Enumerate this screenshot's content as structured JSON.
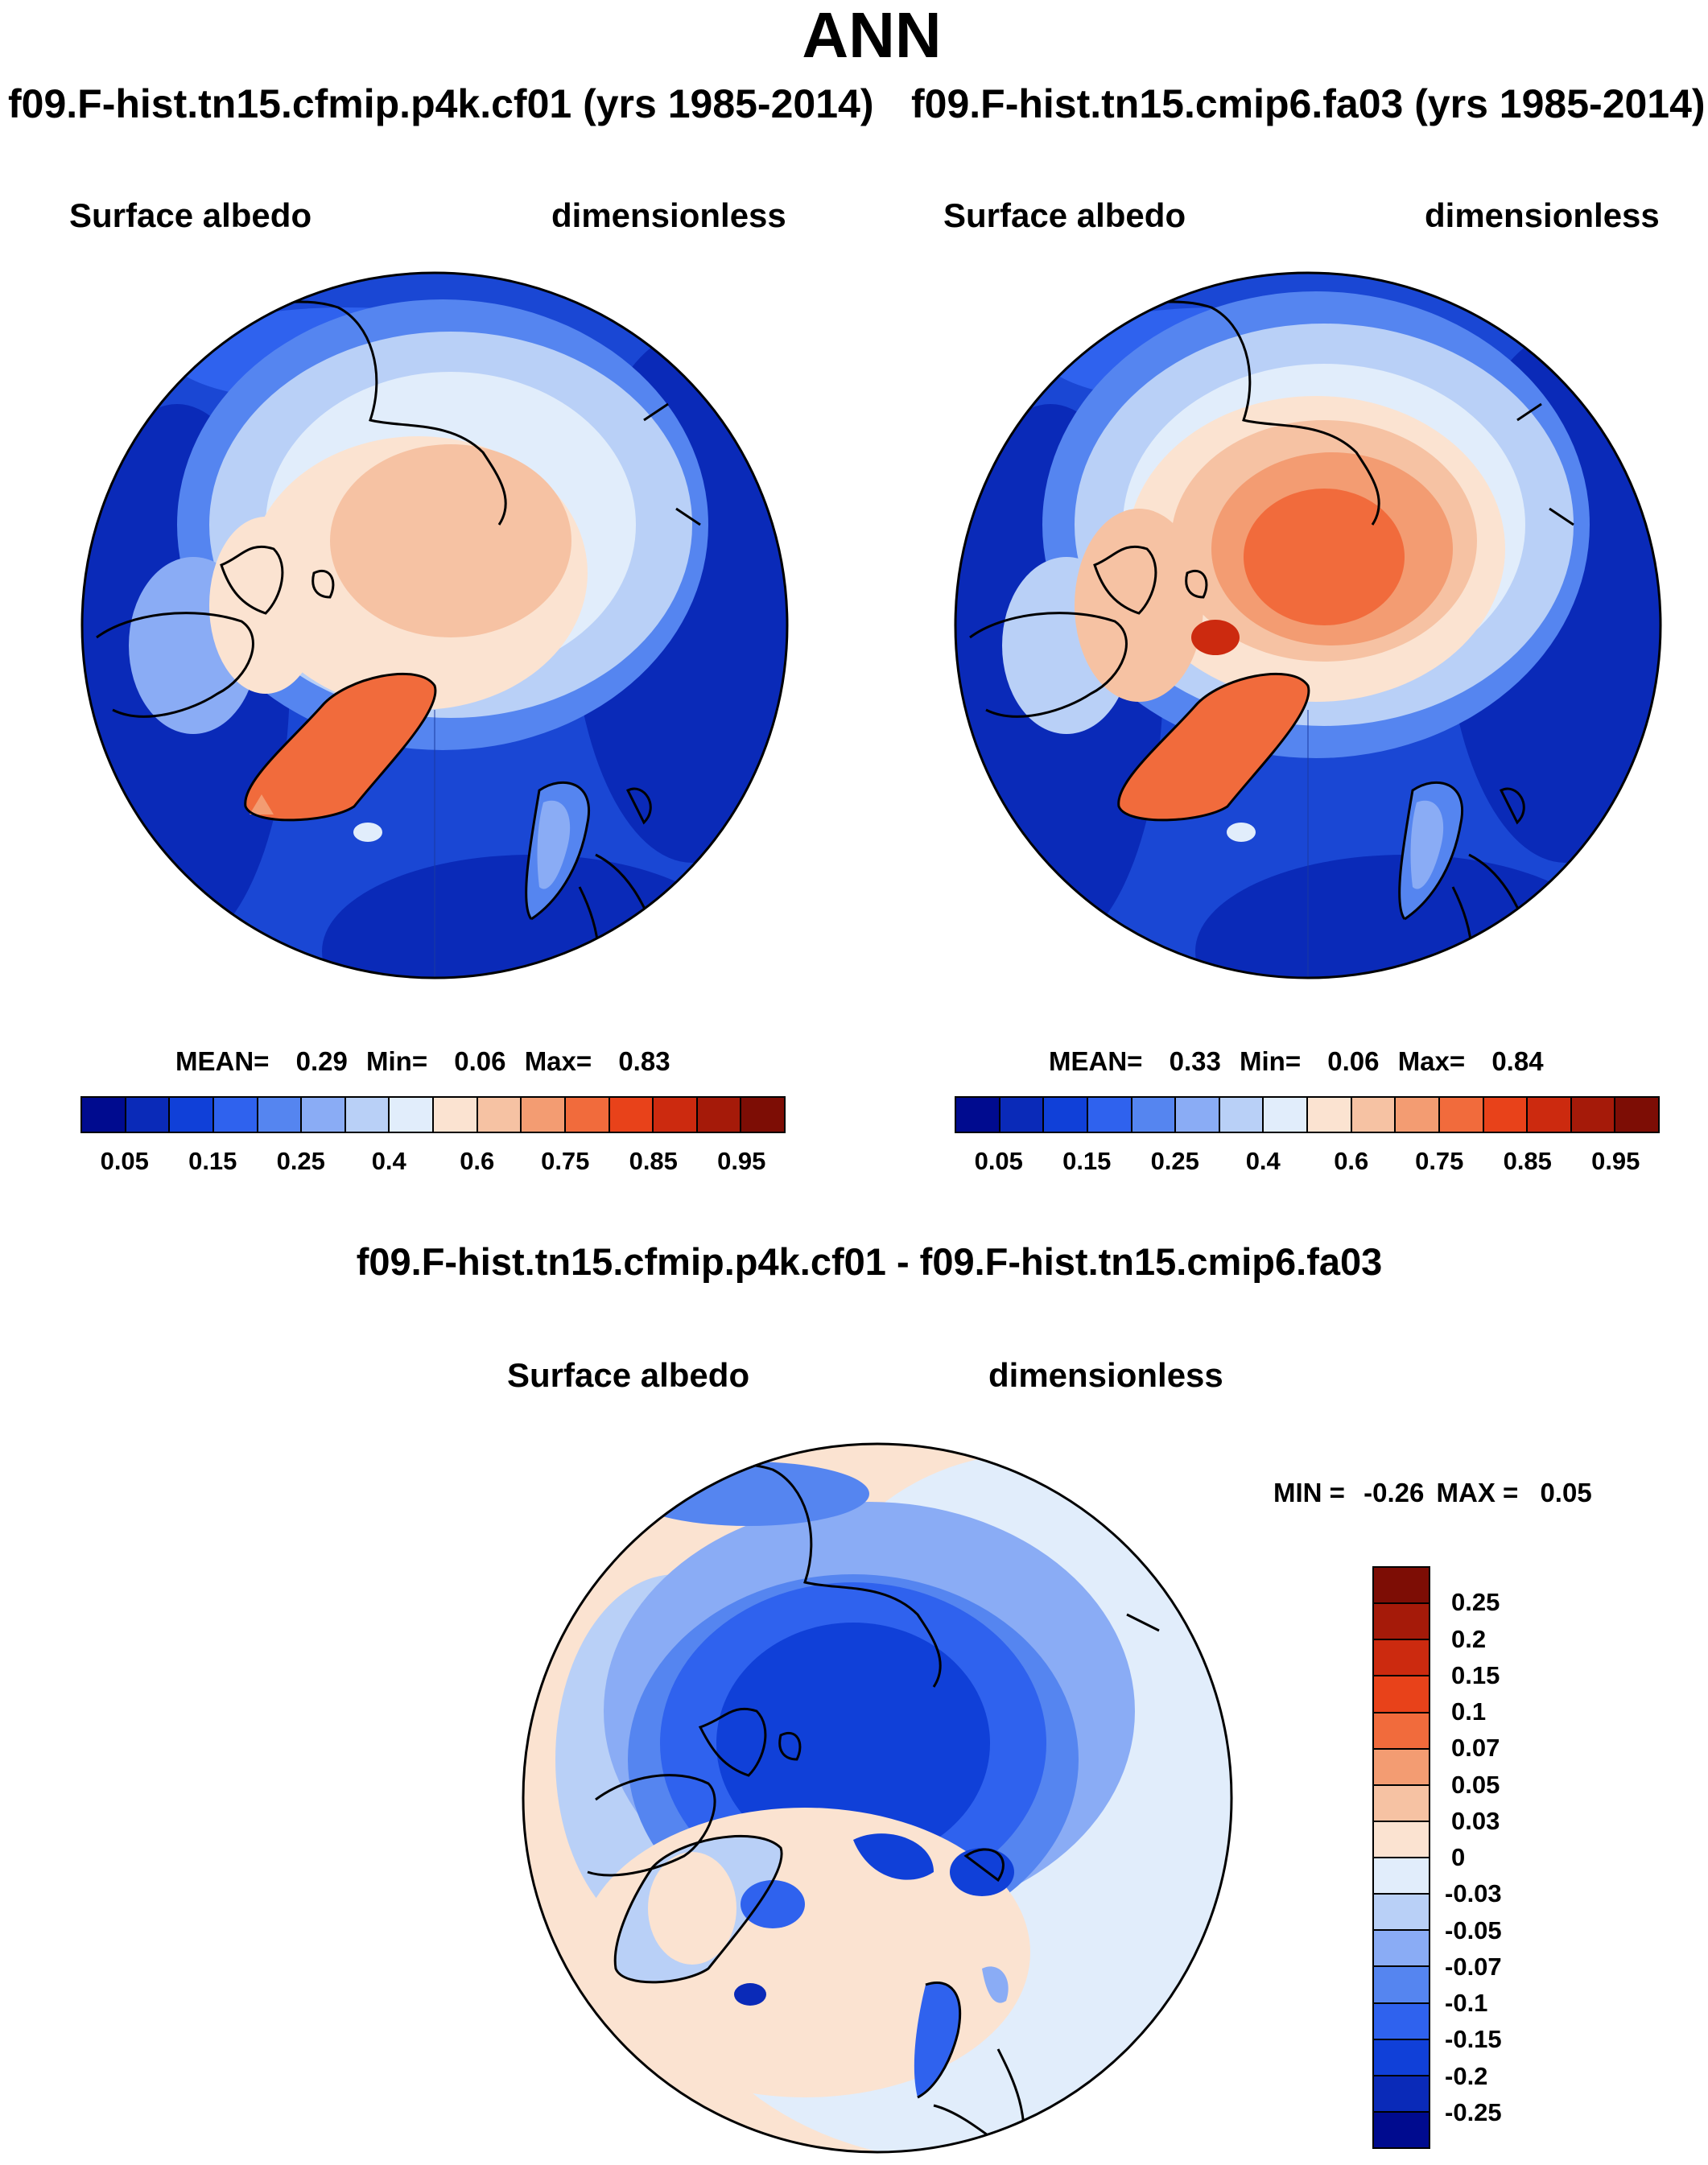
{
  "title": "ANN",
  "panels": [
    {
      "case_label": "f09.F-hist.tn15.cfmip.p4k.cf01 (yrs 1985-2014)",
      "variable": "Surface albedo",
      "units": "dimensionless",
      "stats": {
        "mean_label": "MEAN=",
        "mean": "0.29",
        "min_label": "Min=",
        "min": "0.06",
        "max_label": "Max=",
        "max": "0.83"
      },
      "map_fill": {
        "ocean": "#1a47d4",
        "ice": "#f5c9ad",
        "greenland": "#f05a2e"
      }
    },
    {
      "case_label": "f09.F-hist.tn15.cmip6.fa03 (yrs 1985-2014)",
      "variable": "Surface albedo",
      "units": "dimensionless",
      "stats": {
        "mean_label": "MEAN=",
        "mean": "0.33",
        "min_label": "Min=",
        "min": "0.06",
        "max_label": "Max=",
        "max": "0.84"
      },
      "map_fill": {
        "ocean": "#1a47d4",
        "ice": "#f39a6e",
        "greenland": "#f05a2e"
      }
    }
  ],
  "colorbar": {
    "colors": [
      "#000b8f",
      "#0a2ab8",
      "#1040d8",
      "#2f62ee",
      "#5585f0",
      "#8aacf5",
      "#b9d0f7",
      "#e1edfb",
      "#fbe3d1",
      "#f6c2a3",
      "#f39c72",
      "#f16b3c",
      "#e8421a",
      "#cc2a0f",
      "#a51a09",
      "#7d0d05"
    ],
    "ticks": [
      "0.05",
      "0.15",
      "0.25",
      "0.4",
      "0.6",
      "0.75",
      "0.85",
      "0.95"
    ]
  },
  "diff": {
    "title": "f09.F-hist.tn15.cfmip.p4k.cf01 - f09.F-hist.tn15.cmip6.fa03",
    "variable": "Surface albedo",
    "units": "dimensionless",
    "stats": {
      "min_label": "MIN =",
      "min": "-0.26",
      "max_label": "MAX =",
      "max": "0.05"
    },
    "colors_top_to_bottom": [
      "#7d0d05",
      "#a51a09",
      "#cc2a0f",
      "#e8421a",
      "#f16b3c",
      "#f39c72",
      "#f6c2a3",
      "#fbe3d1",
      "#e1edfb",
      "#b9d0f7",
      "#8aacf5",
      "#5585f0",
      "#2f62ee",
      "#1040d8",
      "#0a2ab8",
      "#000b8f"
    ],
    "ticks_top_to_bottom": [
      "0.25",
      "0.2",
      "0.15",
      "0.1",
      "0.07",
      "0.05",
      "0.03",
      "0",
      "-0.03",
      "-0.05",
      "-0.07",
      "-0.1",
      "-0.15",
      "-0.2",
      "-0.25"
    ],
    "map_fill": {
      "ocean": "#fbe3d1",
      "land": "#b9d0f7",
      "ice": "#2f62ee",
      "greenland": "#fbe3d1"
    }
  }
}
